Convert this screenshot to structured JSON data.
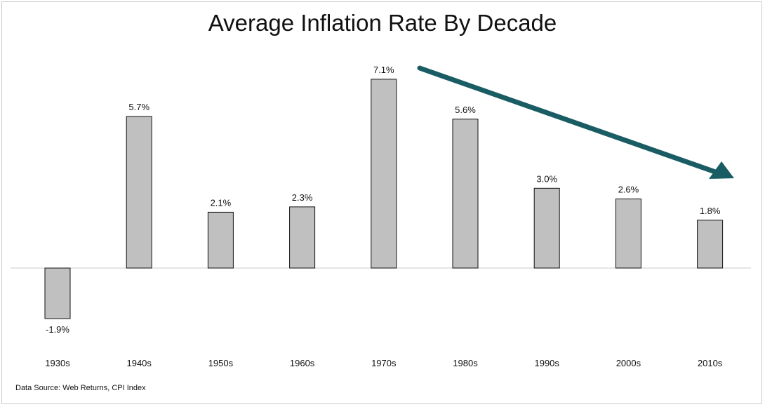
{
  "chart_data": {
    "type": "bar",
    "title": "Average Inflation Rate By Decade",
    "categories": [
      "1930s",
      "1940s",
      "1950s",
      "1960s",
      "1970s",
      "1980s",
      "1990s",
      "2000s",
      "2010s"
    ],
    "values": [
      -1.9,
      5.7,
      2.1,
      2.3,
      7.1,
      5.6,
      3.0,
      2.6,
      1.8
    ],
    "data_labels": [
      "-1.9%",
      "5.7%",
      "2.1%",
      "2.3%",
      "7.1%",
      "5.6%",
      "3.0%",
      "2.6%",
      "1.8%"
    ],
    "xlabel": "",
    "ylabel": "",
    "grid": false,
    "colors": {
      "bar_fill": "#c0c0c0",
      "bar_stroke": "#111111",
      "arrow": "#1a5c63",
      "baseline": "#cccccc"
    },
    "annotation": {
      "type": "trend-arrow",
      "from_category": "1970s",
      "to_category": "2010s",
      "direction": "down"
    }
  },
  "footer": {
    "source": "Data Source: Web Returns, CPI Index"
  }
}
